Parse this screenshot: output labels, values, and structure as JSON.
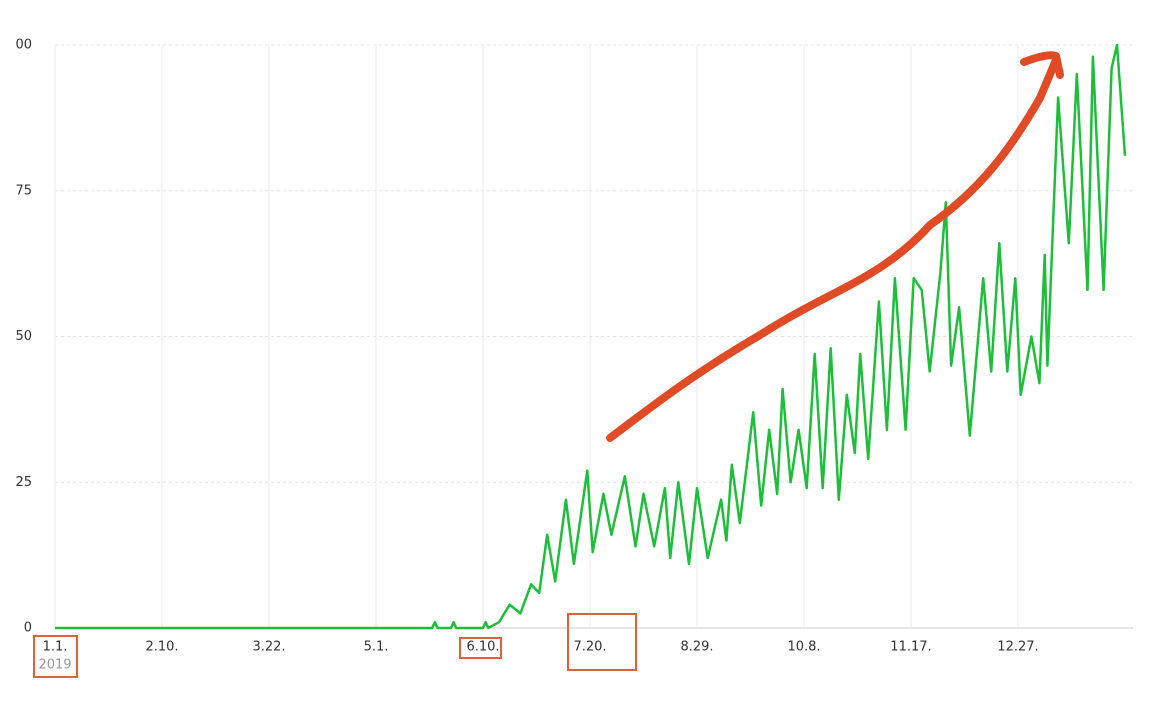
{
  "chart_data": {
    "type": "line",
    "x": [
      "2019-01-01",
      "2019-05-22",
      "2019-05-23",
      "2019-05-24",
      "2019-05-29",
      "2019-05-30",
      "2019-05-31",
      "2019-06-10",
      "2019-06-11",
      "2019-06-12",
      "2019-06-16",
      "2019-06-20",
      "2019-06-24",
      "2019-06-28",
      "2019-07-01",
      "2019-07-04",
      "2019-07-07",
      "2019-07-11",
      "2019-07-14",
      "2019-07-19",
      "2019-07-21",
      "2019-07-25",
      "2019-07-28",
      "2019-08-02",
      "2019-08-06",
      "2019-08-09",
      "2019-08-13",
      "2019-08-17",
      "2019-08-19",
      "2019-08-22",
      "2019-08-26",
      "2019-08-29",
      "2019-09-02",
      "2019-09-07",
      "2019-09-09",
      "2019-09-11",
      "2019-09-14",
      "2019-09-19",
      "2019-09-22",
      "2019-09-25",
      "2019-09-28",
      "2019-09-30",
      "2019-10-03",
      "2019-10-06",
      "2019-10-09",
      "2019-10-12",
      "2019-10-15",
      "2019-10-18",
      "2019-10-21",
      "2019-10-24",
      "2019-10-27",
      "2019-10-29",
      "2019-11-01",
      "2019-11-05",
      "2019-11-08",
      "2019-11-11",
      "2019-11-15",
      "2019-11-18",
      "2019-11-21",
      "2019-11-24",
      "2019-11-28",
      "2019-11-30",
      "2019-12-02",
      "2019-12-05",
      "2019-12-09",
      "2019-12-14",
      "2019-12-17",
      "2019-12-20",
      "2019-12-23",
      "2019-12-26",
      "2019-12-28",
      "2020-01-01",
      "2020-01-04",
      "2020-01-06",
      "2020-01-07",
      "2020-01-11",
      "2020-01-15",
      "2020-01-18",
      "2020-01-22",
      "2020-01-24",
      "2020-01-26",
      "2020-01-28",
      "2020-01-31",
      "2020-02-02",
      "2020-02-05"
    ],
    "series": [
      {
        "color": "#1dbf3a",
        "values": [
          0,
          0,
          1,
          0,
          0,
          1,
          0,
          0,
          1,
          0,
          1,
          4,
          2.5,
          7.5,
          6,
          16,
          8,
          22,
          11,
          27,
          13,
          23,
          16,
          26,
          14,
          23,
          14,
          24,
          12,
          25,
          11,
          24,
          12,
          22,
          15,
          28,
          18,
          37,
          21,
          34,
          23,
          41,
          25,
          34,
          24,
          47,
          24,
          48,
          22,
          40,
          30,
          47,
          29,
          56,
          34,
          60,
          34,
          60,
          58,
          44,
          61,
          73,
          45,
          55,
          33,
          60,
          44,
          66,
          44,
          60,
          40,
          50,
          42,
          64,
          45,
          91,
          66,
          95,
          58,
          98,
          78,
          58,
          96,
          100,
          81
        ]
      }
    ],
    "xlim": [
      "2019-01-01",
      "2020-02-08"
    ],
    "xticks": [
      {
        "value": "2019-01-01",
        "label": "1.1."
      },
      {
        "value": "2019-02-10",
        "label": "2.10."
      },
      {
        "value": "2019-03-22",
        "label": "3.22."
      },
      {
        "value": "2019-05-01",
        "label": "5.1."
      },
      {
        "value": "2019-06-10",
        "label": "6.10."
      },
      {
        "value": "2019-07-20",
        "label": "7.20."
      },
      {
        "value": "2019-08-29",
        "label": "8.29."
      },
      {
        "value": "2019-10-08",
        "label": "10.8."
      },
      {
        "value": "2019-11-17",
        "label": "11.17."
      },
      {
        "value": "2019-12-27",
        "label": "12.27."
      }
    ],
    "year_label": "2019",
    "ylim": [
      0,
      100
    ],
    "yticks": [
      0,
      25,
      50,
      75,
      {
        "value": 100,
        "label": "00"
      }
    ],
    "grid": true
  }
}
